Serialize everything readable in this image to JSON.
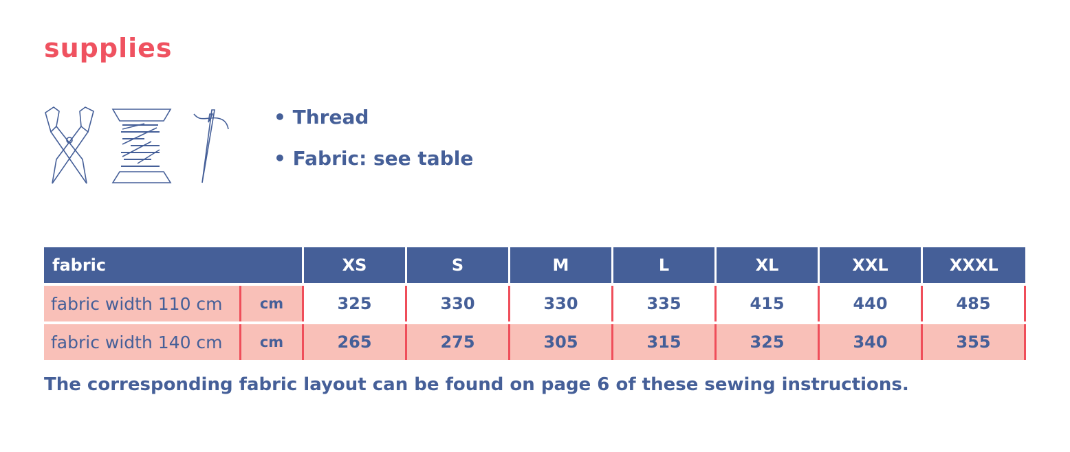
{
  "title": "supplies",
  "icons": [
    "scissors-icon",
    "thread-spool-icon",
    "needle-icon"
  ],
  "supplies": [
    "• Thread",
    "• Fabric: see table"
  ],
  "table": {
    "header": "fabric",
    "sizes": [
      "XS",
      "S",
      "M",
      "L",
      "XL",
      "XXL",
      "XXXL"
    ],
    "rows": [
      {
        "label": "fabric width 110 cm",
        "unit": "cm",
        "values": [
          "325",
          "330",
          "330",
          "335",
          "415",
          "440",
          "485"
        ]
      },
      {
        "label": "fabric width 140 cm",
        "unit": "cm",
        "values": [
          "265",
          "275",
          "305",
          "315",
          "325",
          "340",
          "355"
        ]
      }
    ]
  },
  "note": "The corresponding fabric layout can be found on page 6 of these sewing instructions.",
  "colors": {
    "accent": "#ef5260",
    "primary": "#455f98",
    "row_fill": "#f9c0b8",
    "divider": "#ef4e5a"
  }
}
